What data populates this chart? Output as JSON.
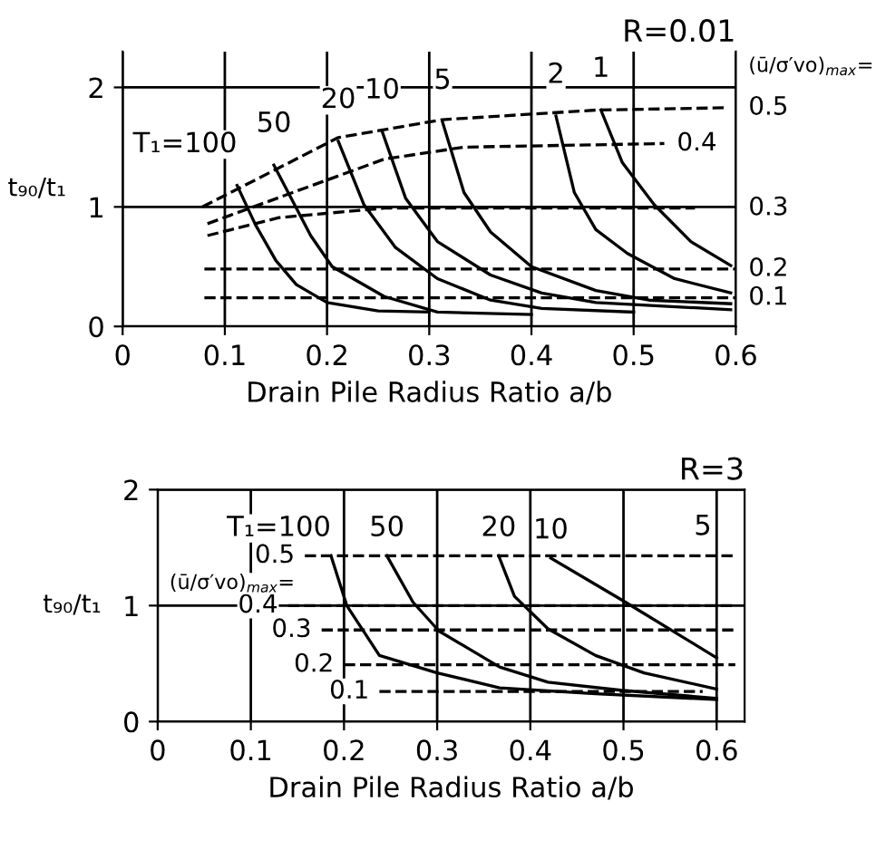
{
  "chart_data": [
    {
      "type": "line",
      "title": "R=0.01",
      "xlabel": "Drain Pile Radius Ratio a/b",
      "ylabel": "t₉₀/t₁",
      "xlim": [
        0,
        0.6
      ],
      "ylim": [
        0,
        2.3
      ],
      "xticks": [
        0,
        0.1,
        0.2,
        0.3,
        0.4,
        0.5,
        0.6
      ],
      "yticks": [
        0,
        1,
        2
      ],
      "grid": true,
      "annotations": [
        "(ū/σ′vo)$_{max}$=",
        {
          "text": "0.5",
          "x": 0.6,
          "y": 1.83
        },
        {
          "text": "0.4",
          "x": 0.53,
          "y": 1.53
        },
        {
          "text": "0.3",
          "x": 0.56,
          "y": 0.99
        },
        {
          "text": "0.2",
          "x": 0.6,
          "y": 0.48
        },
        {
          "text": "0.1",
          "x": 0.6,
          "y": 0.24
        }
      ],
      "series": [
        {
          "name": "T₁=100",
          "color": "#000000",
          "line_style": "solid",
          "x": [
            0.112,
            0.13,
            0.15,
            0.17,
            0.2,
            0.25,
            0.3
          ],
          "values": [
            1.18,
            0.85,
            0.55,
            0.35,
            0.2,
            0.13,
            0.12
          ]
        },
        {
          "name": "50",
          "color": "#000000",
          "line_style": "solid",
          "x": [
            0.148,
            0.184,
            0.205,
            0.256,
            0.308,
            0.4
          ],
          "values": [
            1.35,
            0.76,
            0.5,
            0.25,
            0.12,
            0.1
          ]
        },
        {
          "name": "20",
          "color": "#000000",
          "line_style": "solid",
          "x": [
            0.211,
            0.236,
            0.267,
            0.308,
            0.36,
            0.41,
            0.5
          ],
          "values": [
            1.55,
            1.02,
            0.66,
            0.4,
            0.22,
            0.15,
            0.12
          ]
        },
        {
          "name": "10",
          "color": "#000000",
          "line_style": "solid",
          "x": [
            0.254,
            0.277,
            0.308,
            0.36,
            0.41,
            0.463,
            0.595
          ],
          "values": [
            1.63,
            1.07,
            0.71,
            0.43,
            0.28,
            0.2,
            0.14
          ]
        },
        {
          "name": "5",
          "color": "#000000",
          "line_style": "solid",
          "x": [
            0.313,
            0.334,
            0.36,
            0.4,
            0.463,
            0.515,
            0.595
          ],
          "values": [
            1.71,
            1.12,
            0.79,
            0.5,
            0.3,
            0.22,
            0.19
          ]
        },
        {
          "name": "2",
          "color": "#000000",
          "line_style": "solid",
          "x": [
            0.424,
            0.442,
            0.463,
            0.494,
            0.54,
            0.595
          ],
          "values": [
            1.76,
            1.12,
            0.81,
            0.61,
            0.4,
            0.28
          ]
        },
        {
          "name": "1",
          "color": "#000000",
          "line_style": "solid",
          "x": [
            0.468,
            0.489,
            0.52,
            0.556,
            0.595
          ],
          "values": [
            1.81,
            1.37,
            1.02,
            0.71,
            0.51
          ]
        },
        {
          "color": "#000000",
          "line_style": "dashed",
          "x": [
            0.078,
            0.211,
            0.313,
            0.463,
            0.592
          ],
          "values": [
            1.0,
            1.58,
            1.73,
            1.81,
            1.83
          ]
        },
        {
          "color": "#000000",
          "line_style": "dashed",
          "x": [
            0.083,
            0.256,
            0.334,
            0.53
          ],
          "values": [
            0.86,
            1.4,
            1.5,
            1.53
          ]
        },
        {
          "color": "#000000",
          "line_style": "dashed",
          "x": [
            0.083,
            0.153,
            0.256,
            0.56
          ],
          "values": [
            0.76,
            0.91,
            0.99,
            0.99
          ]
        },
        {
          "color": "#000000",
          "line_style": "dashed",
          "x": [
            0.08,
            0.6
          ],
          "values": [
            0.48,
            0.48
          ]
        },
        {
          "color": "#000000",
          "line_style": "dashed",
          "x": [
            0.08,
            0.6
          ],
          "values": [
            0.24,
            0.24
          ]
        }
      ]
    },
    {
      "type": "line",
      "title": "R=3",
      "xlabel": "Drain Pile Radius Ratio a/b",
      "ylabel": "t₉₀/t₁",
      "xlim": [
        0,
        0.63
      ],
      "ylim": [
        0,
        2
      ],
      "xticks": [
        0,
        0.1,
        0.2,
        0.3,
        0.4,
        0.5,
        0.6
      ],
      "yticks": [
        0,
        1,
        2
      ],
      "grid": true,
      "annotations": [
        "(ū/σ′vo)$_{max}$=",
        {
          "text": "0.5",
          "x": 0.158,
          "y": 1.43
        },
        {
          "text": "0.4",
          "x": 0.14,
          "y": 1.0
        },
        {
          "text": "0.3",
          "x": 0.176,
          "y": 0.79
        },
        {
          "text": "0.2",
          "x": 0.2,
          "y": 0.49
        },
        {
          "text": "0.1",
          "x": 0.238,
          "y": 0.26
        },
        {
          "text": "5",
          "x": 0.6,
          "y": 1.43
        }
      ],
      "series": [
        {
          "name": "T₁=100",
          "color": "#000000",
          "line_style": "solid",
          "x": [
            0.186,
            0.203,
            0.238,
            0.3,
            0.367,
            0.47,
            0.6
          ],
          "values": [
            1.43,
            1.0,
            0.57,
            0.42,
            0.29,
            0.24,
            0.19
          ]
        },
        {
          "name": "50",
          "color": "#000000",
          "line_style": "solid",
          "x": [
            0.246,
            0.274,
            0.302,
            0.367,
            0.419,
            0.497,
            0.6
          ],
          "values": [
            1.43,
            1.03,
            0.78,
            0.47,
            0.34,
            0.27,
            0.2
          ]
        },
        {
          "name": "20",
          "color": "#000000",
          "line_style": "solid",
          "x": [
            0.366,
            0.383,
            0.419,
            0.47,
            0.522,
            0.6
          ],
          "values": [
            1.43,
            1.08,
            0.8,
            0.57,
            0.42,
            0.28
          ]
        },
        {
          "name": "10",
          "color": "#000000",
          "line_style": "solid",
          "x": [
            0.422,
            0.5,
            0.6
          ],
          "values": [
            1.41,
            1.04,
            0.55
          ]
        },
        {
          "color": "#000000",
          "line_style": "dashed",
          "x": [
            0.158,
            0.62
          ],
          "values": [
            1.43,
            1.43
          ]
        },
        {
          "color": "#000000",
          "line_style": "dashed",
          "x": [
            0.14,
            0.62
          ],
          "values": [
            1.0,
            1.0
          ]
        },
        {
          "color": "#000000",
          "line_style": "dashed",
          "x": [
            0.176,
            0.62
          ],
          "values": [
            0.79,
            0.79
          ]
        },
        {
          "color": "#000000",
          "line_style": "dashed",
          "x": [
            0.2,
            0.62
          ],
          "values": [
            0.49,
            0.49
          ]
        },
        {
          "color": "#000000",
          "line_style": "dashed",
          "x": [
            0.238,
            0.585
          ],
          "values": [
            0.26,
            0.26
          ]
        }
      ]
    }
  ]
}
